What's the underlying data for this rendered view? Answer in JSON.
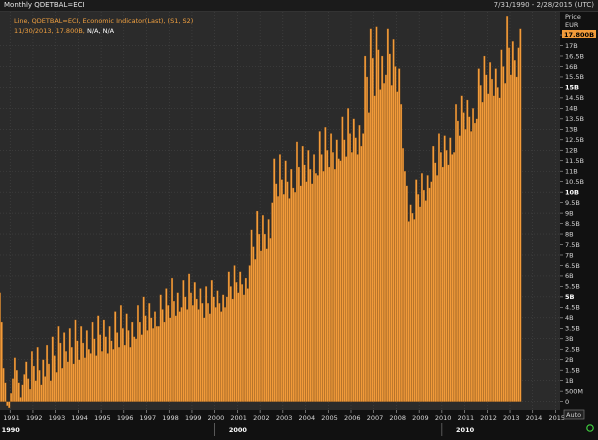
{
  "window": {
    "title": "Monthly QDETBAL=ECI",
    "date_range": "7/31/1990 - 2/28/2015 (UTC)"
  },
  "legend": {
    "line1": "Line, QDETBAL=ECI, Economic Indicator(Last), (S1, S2)",
    "line2_value": "11/30/2013, 17.800B,",
    "line2_rest": " N/A, N/A"
  },
  "price_axis": {
    "header": "Price",
    "currency": "EUR",
    "last_value_label": "17.800B",
    "auto_button": "Auto"
  },
  "x_axis": {
    "year_labels": [
      "1991",
      "1992",
      "1993",
      "1994",
      "1995",
      "1996",
      "1997",
      "1998",
      "1999",
      "2000",
      "2001",
      "2002",
      "2003",
      "2004",
      "2005",
      "2006",
      "2007",
      "2008",
      "2009",
      "2010",
      "2011",
      "2012",
      "2013",
      "2014",
      "2015"
    ],
    "decade_labels": [
      "1990",
      "2000",
      "2010"
    ]
  },
  "colors": {
    "background": "#000000",
    "plot_background": "#2b2b2b",
    "grid": "#4a4a4a",
    "bar": "#f29b3a",
    "bar_edge": "#7a4a18",
    "last_value_box": "#f29b3a"
  },
  "chart_data": {
    "type": "bar",
    "series": [
      {
        "name": "QDETBAL=ECI"
      }
    ],
    "x_start": "1990-07",
    "x_end": "2013-12",
    "x_range_years": [
      1990.55,
      2015.2
    ],
    "ylim_billions": [
      -0.4,
      18.6
    ],
    "y_ticks": [
      {
        "v": 0,
        "label": "0"
      },
      {
        "v": 0.5,
        "label": "500M"
      },
      {
        "v": 1,
        "label": "1B"
      },
      {
        "v": 1.5,
        "label": "1.5B"
      },
      {
        "v": 2,
        "label": "2B"
      },
      {
        "v": 2.5,
        "label": "2.5B"
      },
      {
        "v": 3,
        "label": "3B"
      },
      {
        "v": 3.5,
        "label": "3.5B"
      },
      {
        "v": 4,
        "label": "4B"
      },
      {
        "v": 4.5,
        "label": "4.5B"
      },
      {
        "v": 5,
        "label": "5B",
        "bold": true
      },
      {
        "v": 5.5,
        "label": "5.5B"
      },
      {
        "v": 6,
        "label": "6B"
      },
      {
        "v": 6.5,
        "label": "6.5B"
      },
      {
        "v": 7,
        "label": "7B"
      },
      {
        "v": 7.5,
        "label": "7.5B"
      },
      {
        "v": 8,
        "label": "8B"
      },
      {
        "v": 8.5,
        "label": "8.5B"
      },
      {
        "v": 9,
        "label": "9B"
      },
      {
        "v": 9.5,
        "label": "9.5B"
      },
      {
        "v": 10,
        "label": "10B",
        "bold": true
      },
      {
        "v": 10.5,
        "label": "10.5B"
      },
      {
        "v": 11,
        "label": "11B"
      },
      {
        "v": 11.5,
        "label": "11.5B"
      },
      {
        "v": 12,
        "label": "12B"
      },
      {
        "v": 12.5,
        "label": "12.5B"
      },
      {
        "v": 13,
        "label": "13B"
      },
      {
        "v": 13.5,
        "label": "13.5B"
      },
      {
        "v": 14,
        "label": "14B"
      },
      {
        "v": 14.5,
        "label": "14.5B"
      },
      {
        "v": 15,
        "label": "15B",
        "bold": true
      },
      {
        "v": 15.5,
        "label": "15.5B"
      },
      {
        "v": 16,
        "label": "16B"
      },
      {
        "v": 16.5,
        "label": "16.5B"
      },
      {
        "v": 17,
        "label": "17B"
      },
      {
        "v": 17.5,
        "label": "17.5B"
      }
    ],
    "values_billions": [
      5.2,
      3.8,
      1.6,
      0.9,
      -0.2,
      -0.3,
      0.4,
      1.1,
      2.1,
      1.5,
      0.9,
      0.2,
      0.8,
      1.3,
      1.9,
      1.1,
      0.6,
      2.4,
      1.7,
      1.0,
      2.6,
      1.5,
      0.8,
      2.0,
      1.2,
      2.7,
      1.8,
      1.0,
      3.1,
      2.2,
      1.4,
      3.6,
      2.8,
      1.6,
      3.3,
      2.4,
      1.9,
      3.5,
      2.6,
      1.8,
      3.9,
      2.9,
      2.0,
      3.6,
      2.8,
      2.1,
      3.4,
      2.5,
      2.3,
      3.8,
      3.0,
      2.2,
      4.1,
      3.2,
      2.4,
      3.9,
      3.1,
      2.3,
      3.6,
      2.9,
      2.5,
      4.3,
      3.3,
      2.6,
      4.6,
      3.5,
      2.7,
      4.2,
      3.4,
      2.6,
      3.8,
      3.1,
      3.0,
      4.6,
      3.8,
      3.2,
      5.0,
      4.1,
      3.4,
      4.7,
      4.0,
      3.5,
      4.3,
      3.6,
      3.6,
      5.1,
      4.4,
      3.8,
      5.4,
      4.6,
      4.0,
      5.9,
      4.8,
      4.1,
      5.2,
      4.3,
      4.5,
      5.8,
      5.0,
      4.4,
      6.1,
      5.2,
      4.6,
      5.7,
      4.9,
      4.4,
      5.4,
      4.7,
      4.0,
      5.5,
      4.7,
      4.2,
      5.8,
      5.0,
      4.5,
      5.3,
      4.7,
      4.3,
      5.1,
      4.5,
      5.0,
      6.2,
      5.5,
      4.9,
      6.5,
      5.7,
      5.2,
      6.2,
      5.6,
      5.1,
      5.9,
      5.4,
      6.5,
      8.2,
      7.4,
      6.8,
      9.1,
      8.0,
      7.2,
      8.9,
      8.0,
      7.3,
      8.7,
      7.8,
      9.5,
      11.6,
      10.4,
      9.8,
      11.8,
      10.6,
      9.9,
      11.5,
      10.5,
      9.7,
      11.1,
      10.2,
      10.0,
      12.4,
      11.2,
      10.3,
      12.2,
      11.3,
      10.5,
      12.0,
      11.1,
      10.4,
      11.8,
      10.9,
      10.8,
      12.9,
      11.8,
      11.0,
      13.1,
      12.0,
      11.2,
      12.8,
      11.9,
      11.1,
      12.5,
      11.6,
      11.5,
      13.6,
      12.5,
      11.7,
      14.0,
      12.8,
      11.9,
      13.5,
      12.6,
      11.8,
      13.2,
      12.2,
      12.8,
      16.5,
      15.5,
      13.8,
      17.8,
      16.4,
      14.6,
      17.9,
      16.8,
      14.9,
      16.5,
      15.2,
      15.6,
      17.8,
      16.6,
      15.1,
      17.3,
      16.0,
      14.8,
      15.9,
      14.2,
      12.1,
      11.0,
      10.3,
      8.6,
      9.4,
      9.0,
      8.7,
      10.6,
      9.9,
      9.3,
      10.9,
      10.1,
      9.6,
      10.8,
      10.2,
      10.5,
      12.2,
      11.4,
      10.8,
      12.8,
      11.9,
      11.2,
      12.7,
      12.0,
      11.3,
      12.6,
      11.8,
      11.9,
      14.2,
      13.4,
      12.7,
      14.6,
      13.8,
      13.0,
      14.4,
      13.6,
      12.9,
      14.0,
      13.3,
      13.5,
      15.9,
      15.1,
      14.3,
      16.5,
      15.6,
      14.7,
      16.2,
      15.4,
      14.6,
      15.9,
      15.0,
      14.5,
      16.8,
      16.0,
      15.2,
      18.4,
      16.9,
      15.6,
      17.2,
      16.3,
      15.5,
      16.9,
      17.8
    ]
  }
}
